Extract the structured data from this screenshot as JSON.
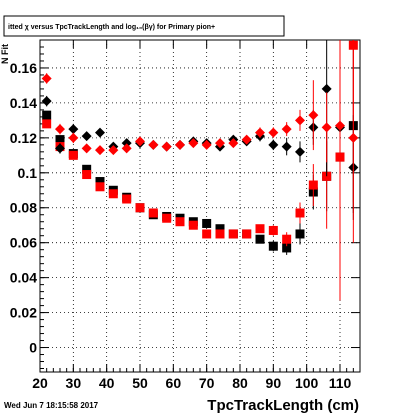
{
  "chart_data": {
    "type": "scatter",
    "title": "itted  χ versus TpcTrackLength and log₁₀(βγ) for Primary pion+",
    "xlabel": "TpcTrackLength (cm)",
    "ylabel": "N  Fit",
    "footer": "Wed Jun  7 18:15:58 2017",
    "xlim": [
      20,
      116
    ],
    "ylim": [
      -0.014,
      0.176
    ],
    "x_ticks": [
      20,
      30,
      40,
      50,
      60,
      70,
      80,
      90,
      100,
      110
    ],
    "y_ticks": [
      0,
      0.02,
      0.04,
      0.06,
      0.08,
      0.1,
      0.12,
      0.14,
      0.16
    ],
    "y_tick_labels": [
      "0",
      "0.02",
      "0.04",
      "0.06",
      "0.08",
      "0.1",
      "0.12",
      "0.14",
      "0.16"
    ],
    "grid": true,
    "series": [
      {
        "marker": "square",
        "color": "#000000",
        "x": [
          22,
          26,
          30,
          34,
          38,
          42,
          46,
          50,
          54,
          58,
          62,
          66,
          70,
          74,
          78,
          82,
          86,
          90,
          94,
          98,
          102,
          106,
          110,
          114
        ],
        "y": [
          0.133,
          0.119,
          0.111,
          0.102,
          0.095,
          0.09,
          0.086,
          0.08,
          0.076,
          0.075,
          0.074,
          0.072,
          0.071,
          0.068,
          0.065,
          0.065,
          0.062,
          0.058,
          0.057,
          0.065,
          0.089,
          0.098,
          0.109,
          0.127
        ],
        "yerr": [
          0.002,
          0.002,
          0.002,
          0.002,
          0.002,
          0.002,
          0.002,
          0.002,
          0.002,
          0.002,
          0.002,
          0.002,
          0.002,
          0.002,
          0.002,
          0.002,
          0.002,
          0.003,
          0.004,
          0.006,
          0.01,
          0.02,
          0.03,
          0.05
        ]
      },
      {
        "marker": "square",
        "color": "#ff0000",
        "x": [
          22,
          26,
          30,
          34,
          38,
          42,
          46,
          50,
          54,
          58,
          62,
          66,
          70,
          74,
          78,
          82,
          86,
          90,
          94,
          98,
          102,
          106,
          110,
          114
        ],
        "y": [
          0.128,
          0.115,
          0.11,
          0.099,
          0.092,
          0.088,
          0.085,
          0.08,
          0.077,
          0.074,
          0.072,
          0.07,
          0.065,
          0.065,
          0.065,
          0.065,
          0.068,
          0.067,
          0.062,
          0.077,
          0.093,
          0.098,
          0.109,
          0.173
        ],
        "yerr": [
          0.002,
          0.002,
          0.002,
          0.002,
          0.002,
          0.002,
          0.002,
          0.002,
          0.002,
          0.002,
          0.002,
          0.002,
          0.002,
          0.002,
          0.002,
          0.002,
          0.002,
          0.003,
          0.004,
          0.006,
          0.012,
          0.03,
          0.04,
          0.09
        ]
      },
      {
        "marker": "diamond",
        "color": "#000000",
        "x": [
          22,
          26,
          30,
          34,
          38,
          42,
          46,
          50,
          54,
          58,
          62,
          66,
          70,
          74,
          78,
          82,
          86,
          90,
          94,
          98,
          102,
          106,
          110,
          114
        ],
        "y": [
          0.141,
          0.114,
          0.125,
          0.121,
          0.123,
          0.115,
          0.117,
          0.117,
          0.116,
          0.115,
          0.116,
          0.118,
          0.117,
          0.115,
          0.119,
          0.118,
          0.121,
          0.116,
          0.115,
          0.112,
          0.126,
          0.148,
          0.126,
          0.103
        ],
        "yerr": [
          0.003,
          0.003,
          0.003,
          0.002,
          0.002,
          0.002,
          0.002,
          0.002,
          0.002,
          0.002,
          0.002,
          0.002,
          0.002,
          0.002,
          0.002,
          0.002,
          0.003,
          0.003,
          0.005,
          0.006,
          0.01,
          0.05,
          0.02,
          0.03
        ]
      },
      {
        "marker": "diamond",
        "color": "#ff0000",
        "x": [
          22,
          26,
          30,
          34,
          38,
          42,
          46,
          50,
          54,
          58,
          62,
          66,
          70,
          74,
          78,
          82,
          86,
          90,
          94,
          98,
          102,
          106,
          110,
          114
        ],
        "y": [
          0.154,
          0.125,
          0.12,
          0.114,
          0.113,
          0.113,
          0.114,
          0.118,
          0.116,
          0.115,
          0.116,
          0.117,
          0.116,
          0.117,
          0.117,
          0.119,
          0.123,
          0.123,
          0.125,
          0.13,
          0.133,
          0.126,
          0.127,
          0.12
        ],
        "yerr": [
          0.003,
          0.003,
          0.003,
          0.002,
          0.002,
          0.002,
          0.002,
          0.002,
          0.002,
          0.002,
          0.002,
          0.002,
          0.002,
          0.002,
          0.002,
          0.002,
          0.003,
          0.003,
          0.004,
          0.006,
          0.02,
          0.02,
          0.1,
          0.06
        ]
      }
    ]
  }
}
